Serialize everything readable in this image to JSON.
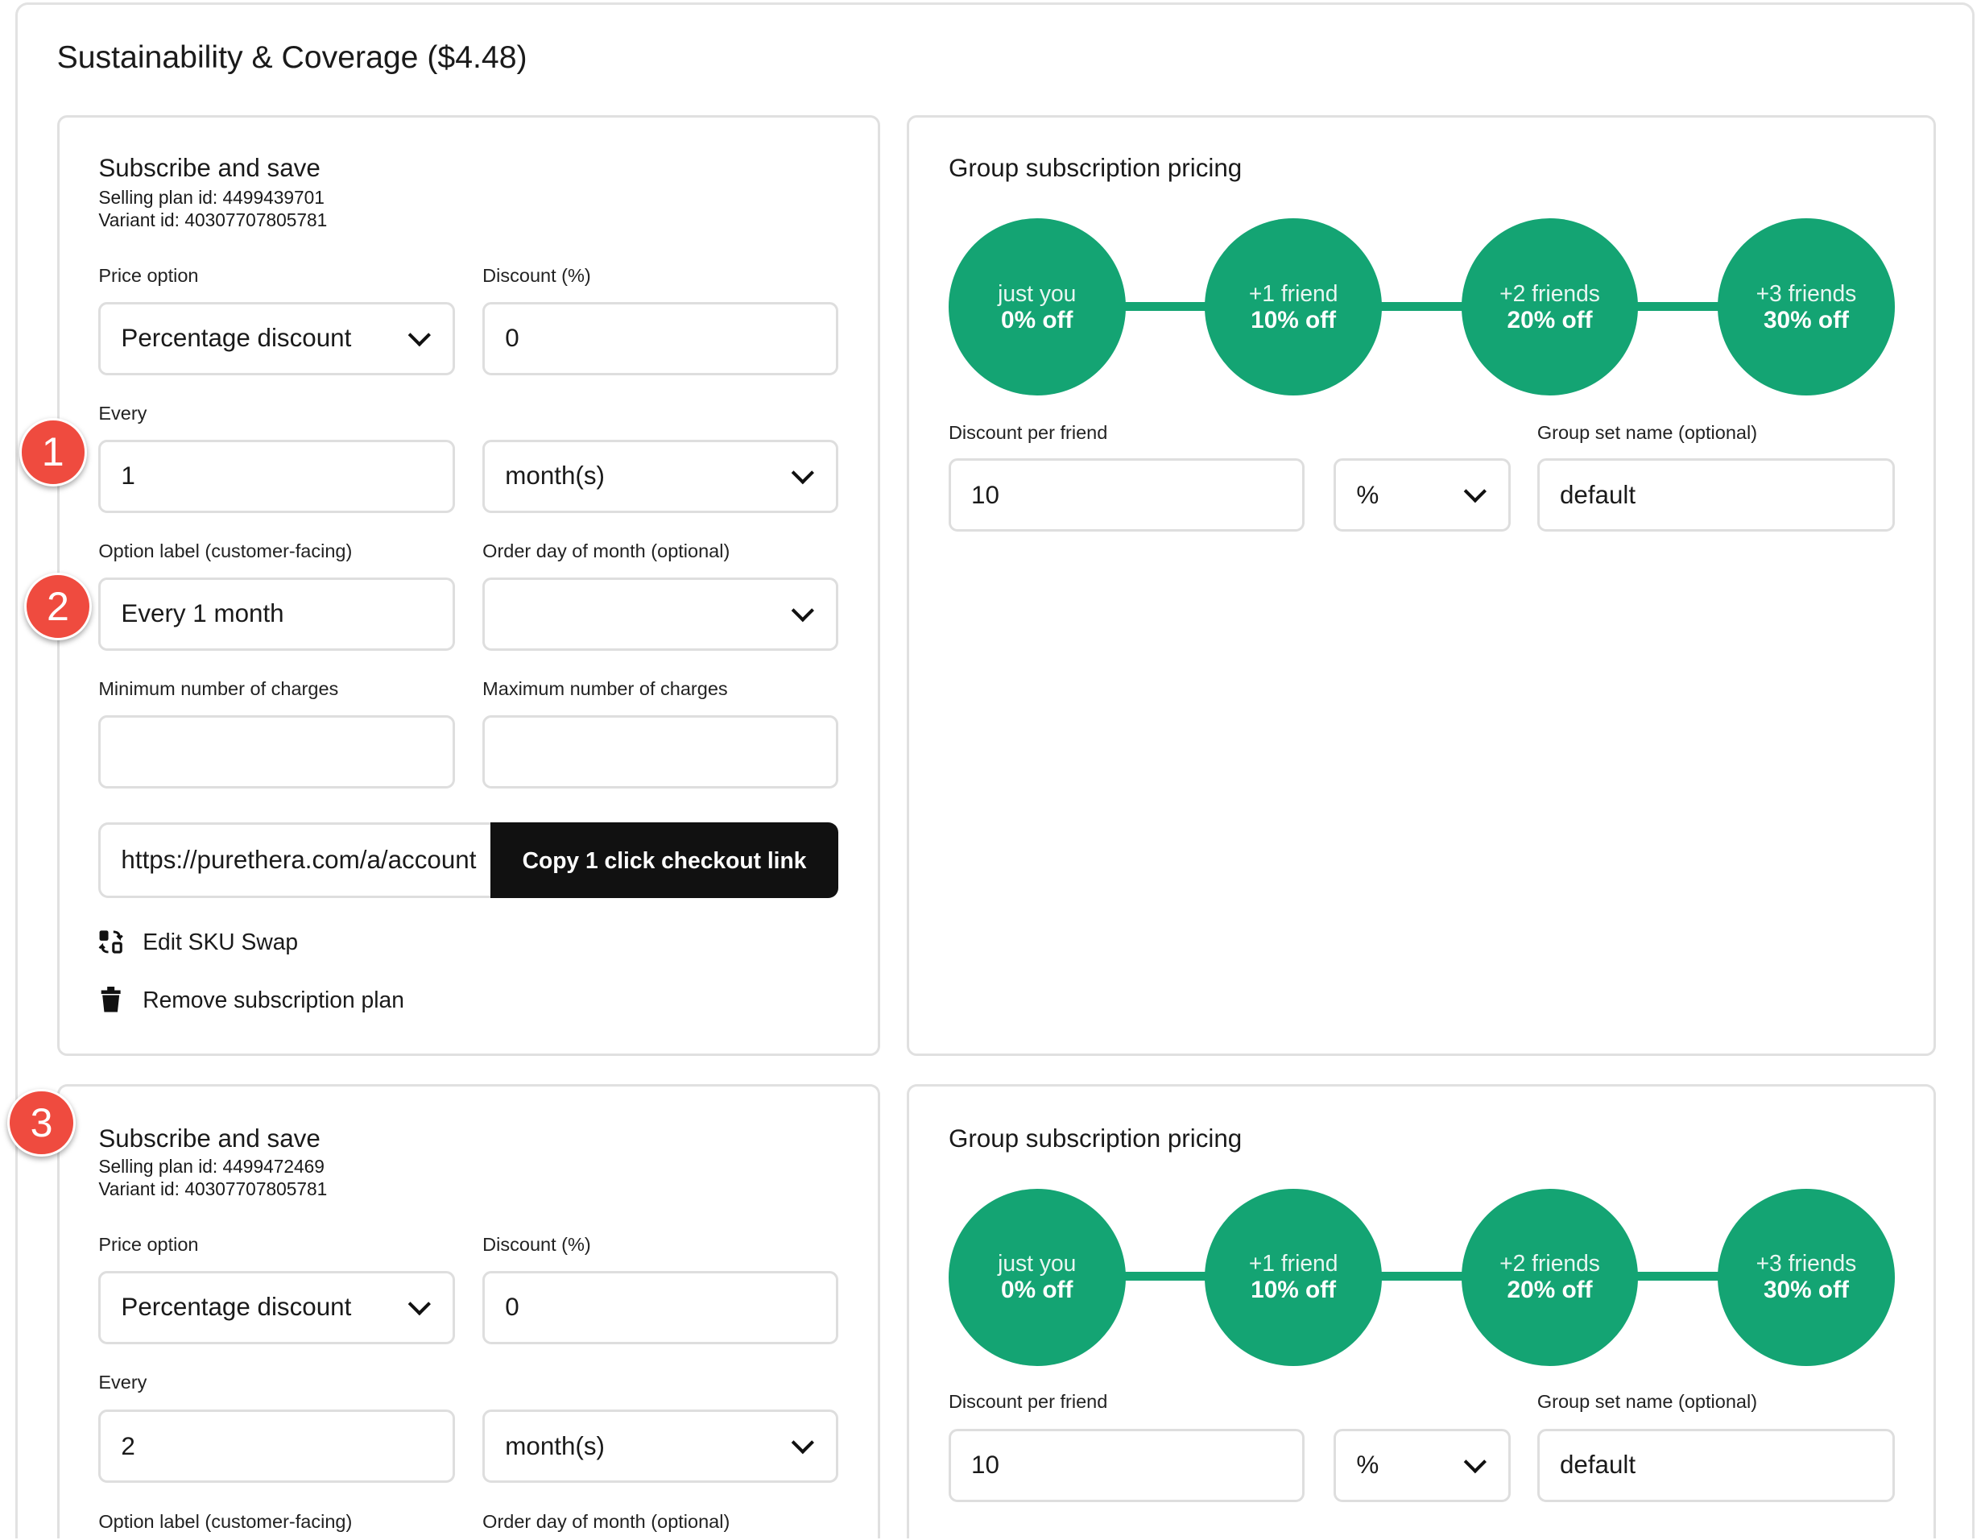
{
  "section_title": "Sustainability & Coverage ($4.48)",
  "colors": {
    "accent_green": "#14a473",
    "badge_red": "#ef4b3f",
    "button_black": "#111111"
  },
  "badges": [
    "1",
    "2",
    "3"
  ],
  "plans": [
    {
      "title": "Subscribe and save",
      "selling_plan": "Selling plan id: 4499439701",
      "variant": "Variant id: 40307707805781",
      "price_option_label": "Price option",
      "price_option_value": "Percentage discount",
      "discount_label": "Discount (%)",
      "discount_value": "0",
      "every_label": "Every",
      "every_value": "1",
      "interval_value": "month(s)",
      "option_label_label": "Option label (customer-facing)",
      "option_label_value": "Every 1 month",
      "order_day_label": "Order day of month (optional)",
      "order_day_value": "",
      "min_label": "Minimum number of charges",
      "max_label": "Maximum number of charges",
      "checkout_url": "https://purethera.com/a/account",
      "copy_button": "Copy 1 click checkout link",
      "edit_sku": "Edit SKU Swap",
      "remove": "Remove subscription plan"
    },
    {
      "title": "Subscribe and save",
      "selling_plan": "Selling plan id: 4499472469",
      "variant": "Variant id: 40307707805781",
      "price_option_label": "Price option",
      "price_option_value": "Percentage discount",
      "discount_label": "Discount (%)",
      "discount_value": "0",
      "every_label": "Every",
      "every_value": "2",
      "interval_value": "month(s)",
      "option_label_label": "Option label (customer-facing)",
      "order_day_label": "Order day of month (optional)"
    }
  ],
  "group": {
    "title": "Group subscription pricing",
    "tiers": [
      {
        "who": "just you",
        "off": "0% off"
      },
      {
        "who": "+1 friend",
        "off": "10% off"
      },
      {
        "who": "+2 friends",
        "off": "20% off"
      },
      {
        "who": "+3 friends",
        "off": "30% off"
      }
    ],
    "discount_label": "Discount per friend",
    "discount_value": "10",
    "unit_value": "%",
    "set_name_label": "Group set name (optional)",
    "set_name_value": "default"
  }
}
